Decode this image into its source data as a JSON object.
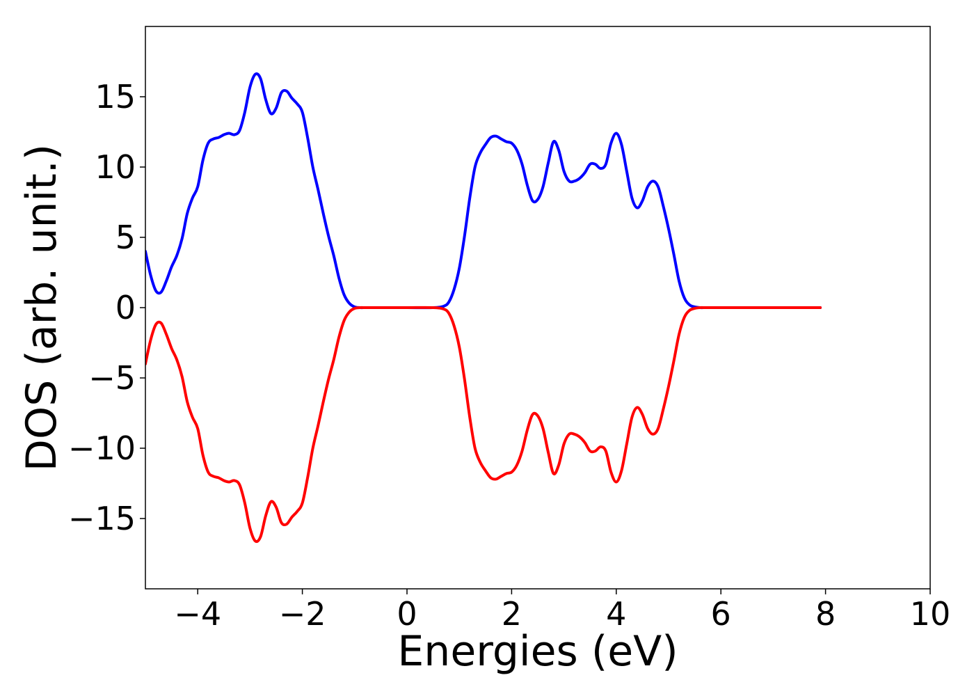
{
  "chart_data": {
    "type": "line",
    "title": "",
    "xlabel": "Energies (eV)",
    "ylabel": "DOS (arb. unit.)",
    "xlim": [
      -5,
      10
    ],
    "ylim": [
      -20,
      20
    ],
    "x_ticks": [
      -4,
      -2,
      0,
      2,
      4,
      6,
      8,
      10
    ],
    "x_tick_labels": [
      "−4",
      "−2",
      "0",
      "2",
      "4",
      "6",
      "8",
      "10"
    ],
    "y_ticks": [
      -15,
      -10,
      -5,
      0,
      5,
      10,
      15
    ],
    "y_tick_labels": [
      "−15",
      "−10",
      "−5",
      "0",
      "5",
      "10",
      "15"
    ],
    "grid": false,
    "legend": "none",
    "series": [
      {
        "color": "#0000ff",
        "x": [
          -5.0,
          -4.9,
          -4.8,
          -4.7,
          -4.6,
          -4.5,
          -4.4,
          -4.3,
          -4.2,
          -4.1,
          -4.0,
          -3.9,
          -3.8,
          -3.7,
          -3.6,
          -3.5,
          -3.4,
          -3.3,
          -3.2,
          -3.1,
          -3.0,
          -2.9,
          -2.8,
          -2.7,
          -2.6,
          -2.5,
          -2.4,
          -2.3,
          -2.2,
          -2.1,
          -2.0,
          -1.9,
          -1.8,
          -1.7,
          -1.6,
          -1.5,
          -1.4,
          -1.3,
          -1.2,
          -1.1,
          -1.0,
          -0.9,
          -0.8,
          -0.7,
          -0.6,
          -0.5,
          0.0,
          0.5,
          0.7,
          0.8,
          0.9,
          1.0,
          1.1,
          1.2,
          1.3,
          1.4,
          1.5,
          1.6,
          1.7,
          1.8,
          1.9,
          2.0,
          2.1,
          2.2,
          2.3,
          2.4,
          2.5,
          2.6,
          2.7,
          2.8,
          2.9,
          3.0,
          3.1,
          3.2,
          3.3,
          3.4,
          3.5,
          3.6,
          3.7,
          3.8,
          3.9,
          4.0,
          4.1,
          4.2,
          4.3,
          4.4,
          4.5,
          4.6,
          4.7,
          4.8,
          4.9,
          5.0,
          5.1,
          5.2,
          5.3,
          5.4,
          5.5,
          5.6,
          5.7,
          5.8,
          5.9,
          6.0,
          6.1,
          6.2,
          6.5,
          7.0,
          7.5,
          7.9
        ],
        "y": [
          4.0,
          2.3,
          1.2,
          1.1,
          1.9,
          2.9,
          3.7,
          4.9,
          6.7,
          7.8,
          8.6,
          10.5,
          11.7,
          12.0,
          12.1,
          12.3,
          12.4,
          12.3,
          12.6,
          13.9,
          15.7,
          16.6,
          16.3,
          14.8,
          13.8,
          14.2,
          15.3,
          15.4,
          14.9,
          14.5,
          13.9,
          12.1,
          10.0,
          8.4,
          6.7,
          5.1,
          3.7,
          2.1,
          0.9,
          0.3,
          0.05,
          0.0,
          0.0,
          0.0,
          0.0,
          0.0,
          0.0,
          0.0,
          0.1,
          0.4,
          1.3,
          2.8,
          5.1,
          7.8,
          10.0,
          11.0,
          11.6,
          12.1,
          12.2,
          12.0,
          11.8,
          11.7,
          11.2,
          10.2,
          8.7,
          7.6,
          7.7,
          8.6,
          10.3,
          11.8,
          11.2,
          9.7,
          9.0,
          9.0,
          9.2,
          9.6,
          10.2,
          10.2,
          9.9,
          10.2,
          11.7,
          12.4,
          11.6,
          9.7,
          7.8,
          7.1,
          7.6,
          8.6,
          9.0,
          8.6,
          7.2,
          5.6,
          3.8,
          1.9,
          0.7,
          0.2,
          0.05,
          0.0,
          0.0,
          0.0,
          0.0,
          0.0,
          0.0,
          0.0,
          0.0,
          0.0,
          0.0,
          0.0
        ]
      },
      {
        "color": "#ff0000",
        "x": [
          -5.0,
          -4.9,
          -4.8,
          -4.7,
          -4.6,
          -4.5,
          -4.4,
          -4.3,
          -4.2,
          -4.1,
          -4.0,
          -3.9,
          -3.8,
          -3.7,
          -3.6,
          -3.5,
          -3.4,
          -3.3,
          -3.2,
          -3.1,
          -3.0,
          -2.9,
          -2.8,
          -2.7,
          -2.6,
          -2.5,
          -2.4,
          -2.3,
          -2.2,
          -2.1,
          -2.0,
          -1.9,
          -1.8,
          -1.7,
          -1.6,
          -1.5,
          -1.4,
          -1.3,
          -1.2,
          -1.1,
          -1.0,
          -0.9,
          -0.8,
          -0.7,
          -0.6,
          -0.5,
          0.0,
          0.5,
          0.7,
          0.8,
          0.9,
          1.0,
          1.1,
          1.2,
          1.3,
          1.4,
          1.5,
          1.6,
          1.7,
          1.8,
          1.9,
          2.0,
          2.1,
          2.2,
          2.3,
          2.4,
          2.5,
          2.6,
          2.7,
          2.8,
          2.9,
          3.0,
          3.1,
          3.2,
          3.3,
          3.4,
          3.5,
          3.6,
          3.7,
          3.8,
          3.9,
          4.0,
          4.1,
          4.2,
          4.3,
          4.4,
          4.5,
          4.6,
          4.7,
          4.8,
          4.9,
          5.0,
          5.1,
          5.2,
          5.3,
          5.4,
          5.5,
          5.6,
          5.7,
          5.8,
          5.9,
          6.0,
          6.1,
          6.2,
          6.5,
          7.0,
          7.5,
          7.9
        ],
        "y": [
          -4.0,
          -2.3,
          -1.2,
          -1.1,
          -1.9,
          -2.9,
          -3.7,
          -4.9,
          -6.7,
          -7.8,
          -8.6,
          -10.5,
          -11.7,
          -12.0,
          -12.1,
          -12.3,
          -12.4,
          -12.3,
          -12.6,
          -13.9,
          -15.7,
          -16.6,
          -16.3,
          -14.8,
          -13.8,
          -14.2,
          -15.3,
          -15.4,
          -14.9,
          -14.5,
          -13.9,
          -12.1,
          -10.0,
          -8.4,
          -6.7,
          -5.1,
          -3.7,
          -2.1,
          -0.9,
          -0.3,
          -0.05,
          0.0,
          0.0,
          0.0,
          0.0,
          0.0,
          0.0,
          0.0,
          -0.1,
          -0.4,
          -1.3,
          -2.8,
          -5.1,
          -7.8,
          -10.0,
          -11.0,
          -11.6,
          -12.1,
          -12.2,
          -12.0,
          -11.8,
          -11.7,
          -11.2,
          -10.2,
          -8.7,
          -7.6,
          -7.7,
          -8.6,
          -10.3,
          -11.8,
          -11.2,
          -9.7,
          -9.0,
          -9.0,
          -9.2,
          -9.6,
          -10.2,
          -10.2,
          -9.9,
          -10.2,
          -11.7,
          -12.4,
          -11.6,
          -9.7,
          -7.8,
          -7.1,
          -7.6,
          -8.6,
          -9.0,
          -8.6,
          -7.2,
          -5.6,
          -3.8,
          -1.9,
          -0.7,
          -0.2,
          -0.05,
          0.0,
          0.0,
          0.0,
          0.0,
          0.0,
          0.0,
          0.0,
          0.0,
          0.0,
          0.0,
          0.0
        ]
      }
    ]
  }
}
